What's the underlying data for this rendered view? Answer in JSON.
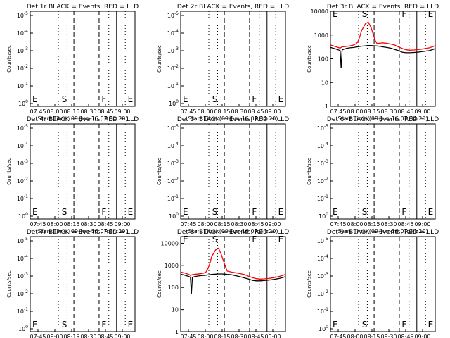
{
  "figure": {
    "colors": {
      "events": "#000000",
      "lld": "#ff0000",
      "axes": "#000000",
      "background": "#ffffff"
    },
    "xlabel": "Start Time (09-Jun-16 07:34:20)",
    "ylabel": "Counts/sec",
    "xticks": [
      "07:45",
      "08:00",
      "08:15",
      "08:30",
      "08:45",
      "09:00"
    ],
    "marker_labels": [
      "E",
      "S",
      "F",
      "E"
    ]
  },
  "chart_data": [
    {
      "type": "line",
      "title": "Det 1r BLACK = Events, RED = LLD",
      "yscale": "log",
      "ylim": [
        1,
        10000
      ],
      "ytick_labels": [
        "10^0",
        "10^-1",
        "10^-2",
        "10^-3",
        "10^-4",
        "10^-5"
      ],
      "series": []
    },
    {
      "type": "line",
      "title": "Det 2r BLACK = Events, RED = LLD",
      "yscale": "log",
      "ylim": [
        1,
        10000
      ],
      "ytick_labels": [
        "10^0",
        "10^-1",
        "10^-2",
        "10^-3",
        "10^-4",
        "10^-5"
      ],
      "series": []
    },
    {
      "type": "line",
      "title": "Det 3r BLACK = Events, RED = LLD",
      "yscale": "log",
      "ylim": [
        1,
        10000
      ],
      "ytick_labels": [
        "1",
        "10",
        "100",
        "1000",
        "10000"
      ],
      "series": [
        {
          "role": "lld",
          "x": [
            0,
            2,
            4,
            5,
            6,
            8,
            10,
            12,
            13,
            14,
            15,
            16,
            18,
            19.5,
            21,
            23,
            24,
            26,
            27,
            29,
            31,
            33,
            35,
            37,
            39,
            41,
            43,
            45,
            47,
            49,
            51,
            53,
            54
          ],
          "y": [
            380,
            340,
            300,
            280,
            320,
            330,
            350,
            380,
            420,
            500,
            800,
            1500,
            3000,
            3500,
            2000,
            600,
            440,
            460,
            470,
            450,
            420,
            380,
            320,
            270,
            240,
            230,
            235,
            245,
            255,
            270,
            290,
            330,
            360
          ]
        },
        {
          "role": "events",
          "x": [
            0,
            2,
            4,
            5,
            5.5,
            6,
            8,
            10,
            12,
            13,
            14,
            15,
            16,
            18,
            19.5,
            21,
            23,
            24,
            26,
            27,
            29,
            31,
            33,
            35,
            37,
            39,
            41,
            43,
            45,
            47,
            49,
            51,
            53,
            54
          ],
          "y": [
            300,
            270,
            240,
            220,
            40,
            240,
            270,
            290,
            300,
            310,
            320,
            330,
            340,
            350,
            360,
            360,
            350,
            345,
            330,
            320,
            300,
            280,
            250,
            220,
            190,
            180,
            180,
            185,
            190,
            200,
            210,
            220,
            250,
            270
          ]
        }
      ]
    },
    {
      "type": "line",
      "title": "Det 4r BLACK = Events, RED = LLD",
      "yscale": "log",
      "ylim": [
        1,
        10000
      ],
      "ytick_labels": [
        "10^0",
        "10^-1",
        "10^-2",
        "10^-3",
        "10^-4",
        "10^-5"
      ],
      "series": []
    },
    {
      "type": "line",
      "title": "Det 5r BLACK = Events, RED = LLD",
      "yscale": "log",
      "ylim": [
        1,
        10000
      ],
      "ytick_labels": [
        "10^0",
        "10^-1",
        "10^-2",
        "10^-3",
        "10^-4",
        "10^-5"
      ],
      "series": []
    },
    {
      "type": "line",
      "title": "Det 6r BLACK = Events, RED = LLD",
      "yscale": "log",
      "ylim": [
        1,
        10000
      ],
      "ytick_labels": [
        "10^0",
        "10^-1",
        "10^-2",
        "10^-3",
        "10^-4",
        "10^-5"
      ],
      "series": []
    },
    {
      "type": "line",
      "title": "Det 7r BLACK = Events, RED = LLD",
      "yscale": "log",
      "ylim": [
        1,
        10000
      ],
      "ytick_labels": [
        "10^0",
        "10^-1",
        "10^-2",
        "10^-3",
        "10^-4",
        "10^-5"
      ],
      "series": []
    },
    {
      "type": "line",
      "title": "Det 8r BLACK = Events, RED = LLD",
      "yscale": "log",
      "ylim": [
        1,
        20000
      ],
      "ytick_labels": [
        "1",
        "10",
        "100",
        "1000",
        "10000"
      ],
      "series": [
        {
          "role": "lld",
          "x": [
            0,
            2,
            4,
            5,
            6,
            8,
            10,
            12,
            13,
            14,
            15,
            16,
            18,
            19.5,
            21,
            23,
            24,
            26,
            27,
            29,
            31,
            33,
            35,
            37,
            39,
            41,
            43,
            45,
            47,
            49,
            51,
            53,
            54
          ],
          "y": [
            500,
            450,
            400,
            350,
            380,
            400,
            420,
            450,
            500,
            700,
            1200,
            2500,
            5000,
            6000,
            3000,
            900,
            550,
            500,
            480,
            450,
            420,
            380,
            320,
            280,
            250,
            240,
            245,
            255,
            270,
            290,
            320,
            360,
            400
          ]
        },
        {
          "role": "events",
          "x": [
            0,
            2,
            4,
            5,
            5.5,
            6,
            8,
            10,
            12,
            13,
            14,
            15,
            16,
            18,
            19.5,
            21,
            23,
            24,
            26,
            27,
            29,
            31,
            33,
            35,
            37,
            39,
            41,
            43,
            45,
            47,
            49,
            51,
            53,
            54
          ],
          "y": [
            400,
            360,
            320,
            290,
            50,
            290,
            320,
            340,
            350,
            360,
            370,
            380,
            390,
            400,
            410,
            410,
            400,
            390,
            380,
            360,
            330,
            300,
            270,
            240,
            210,
            200,
            200,
            205,
            215,
            225,
            240,
            260,
            290,
            310
          ]
        }
      ]
    },
    {
      "type": "line",
      "title": "Det 9r BLACK = Events, RED = LLD",
      "yscale": "log",
      "ylim": [
        1,
        10000
      ],
      "ytick_labels": [
        "10^0",
        "10^-1",
        "10^-2",
        "10^-3",
        "10^-4",
        "10^-5"
      ],
      "series": []
    }
  ]
}
